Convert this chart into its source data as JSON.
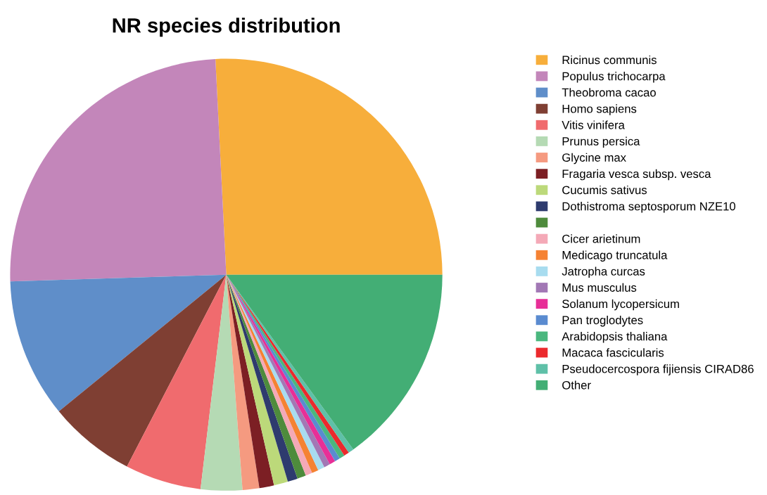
{
  "chart_data": {
    "type": "pie",
    "title": "NR species distribution",
    "categories": [
      "Ricinus communis",
      "Populus trichocarpa",
      "Theobroma cacao",
      "Homo sapiens",
      "Vitis vinifera",
      "Prunus persica",
      "Glycine max",
      "Fragaria vesca subsp. vesca",
      "Cucumis sativus",
      "Dothistroma septosporum NZE10",
      null,
      "Cicer arietinum",
      "Medicago truncatula",
      "Jatropha curcas",
      "Mus musculus",
      "Solanum lycopersicum",
      "Pan troglodytes",
      "Arabidopsis thaliana",
      "Macaca fascicularis",
      "Pseudocercospora fijiensis CIRAD86",
      "Other"
    ],
    "values": [
      25.8,
      24.7,
      10.4,
      6.5,
      5.7,
      3.1,
      1.25,
      1.1,
      1.05,
      0.75,
      0.65,
      0.5,
      0.5,
      0.5,
      0.45,
      0.45,
      0.4,
      0.4,
      0.4,
      0.4,
      15.0
    ],
    "colors": [
      "#f7ae3b",
      "#c386ba",
      "#5f8ec9",
      "#7f3f33",
      "#f06b6e",
      "#b5dab4",
      "#f59a80",
      "#7c1f24",
      "#bcd97a",
      "#2e3b6e",
      "#4e8b3c",
      "#f4a9b7",
      "#f58233",
      "#a8dcef",
      "#a278b5",
      "#e72f97",
      "#5a8bd0",
      "#4ab77e",
      "#eb2a2d",
      "#5fc0a8",
      "#43ae75"
    ],
    "legend": "right"
  }
}
